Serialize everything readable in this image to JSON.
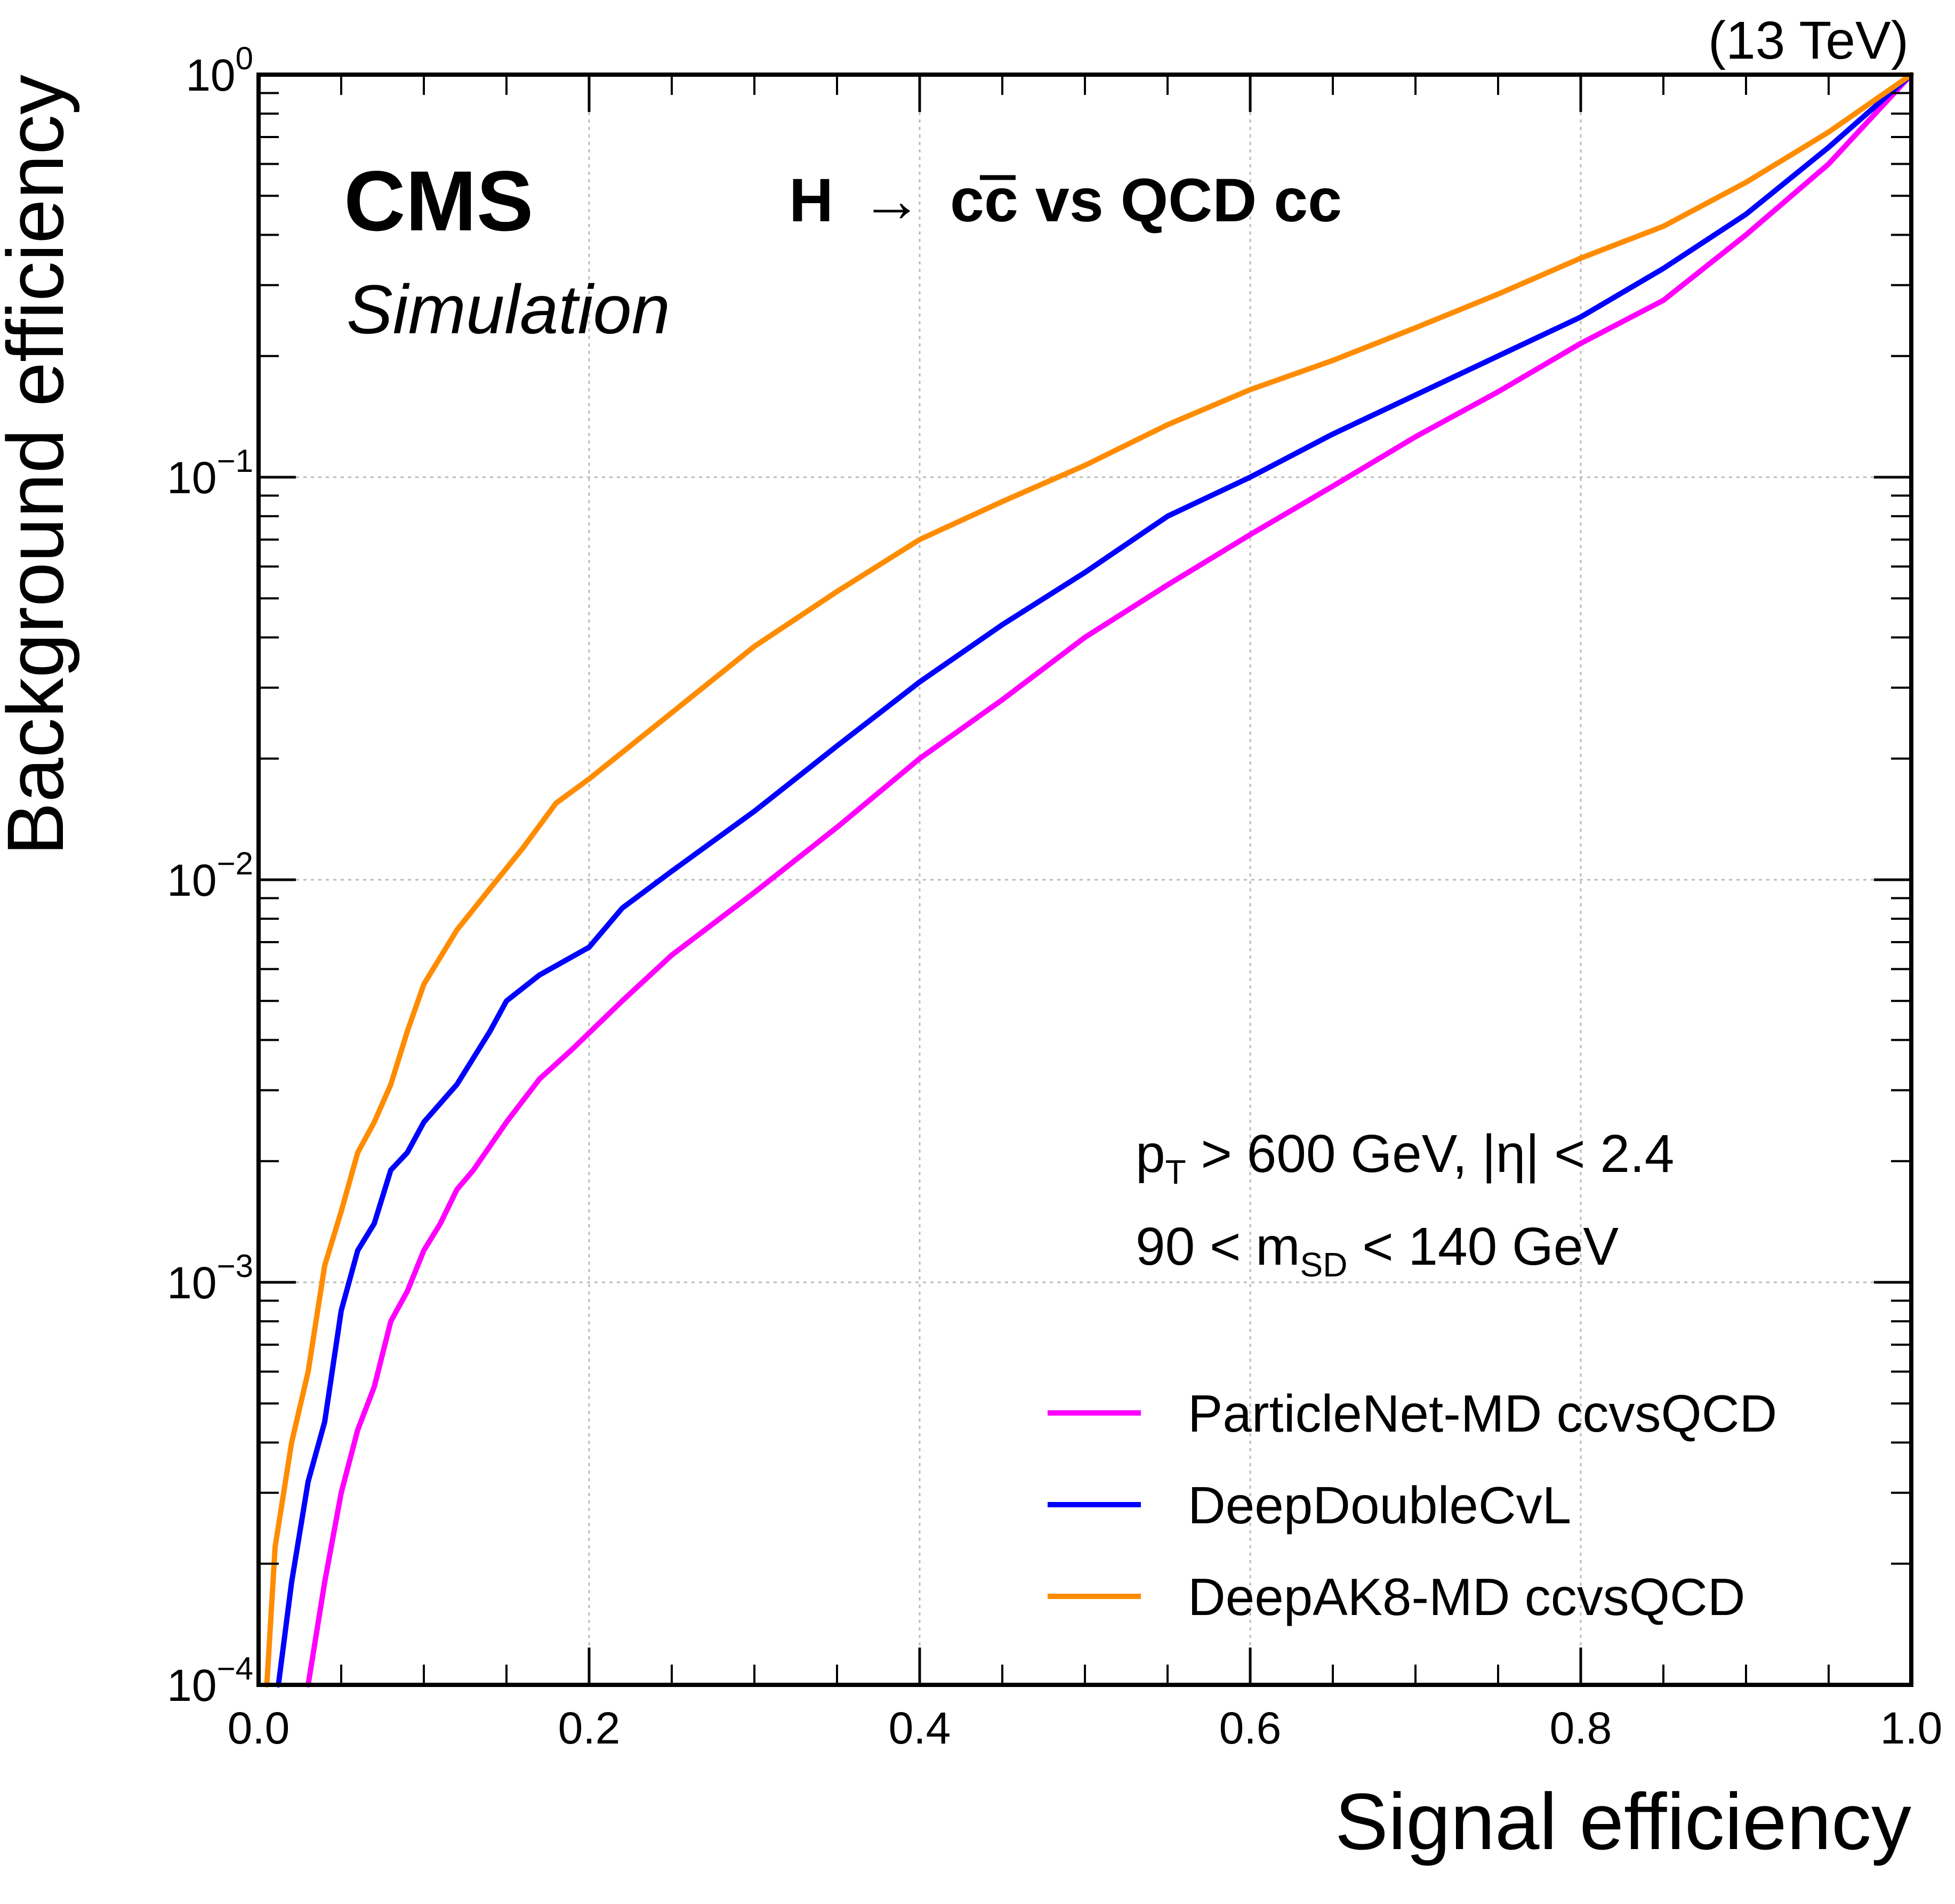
{
  "header": {
    "energy_label": "(13 TeV)",
    "experiment": "CMS",
    "subtitle": "Simulation",
    "process": {
      "H": "H",
      "arrow": "→",
      "c1": "c",
      "c2": "c",
      "rest": " vs QCD cc"
    }
  },
  "cuts": {
    "line1": {
      "p": "p",
      "p_sub": "T",
      "rest": " > 600 GeV,   |η| < 2.4"
    },
    "line2": {
      "pre": "90 < m",
      "sub": "SD",
      "post": " < 140 GeV"
    }
  },
  "chart_data": {
    "type": "line",
    "xlabel": "Signal efficiency",
    "ylabel": "Background efficiency",
    "xlim": [
      0.0,
      1.0
    ],
    "ylim": [
      0.0001,
      1.0
    ],
    "yscale": "log",
    "grid": true,
    "legend_position": "bottom-right",
    "x_ticks": [
      "0.0",
      "0.2",
      "0.4",
      "0.6",
      "0.8",
      "1.0"
    ],
    "y_ticks": [
      {
        "base": "10",
        "exp": "−4",
        "value": 0.0001
      },
      {
        "base": "10",
        "exp": "−3",
        "value": 0.001
      },
      {
        "base": "10",
        "exp": "−2",
        "value": 0.01
      },
      {
        "base": "10",
        "exp": "−1",
        "value": 0.1
      },
      {
        "base": "10",
        "exp": "0",
        "value": 1.0
      }
    ],
    "series": [
      {
        "name": "ParticleNet-MD ccvsQCD",
        "color": "#ff00ff",
        "points": [
          [
            0.03,
            0.0001
          ],
          [
            0.04,
            0.00018
          ],
          [
            0.05,
            0.0003
          ],
          [
            0.06,
            0.00043
          ],
          [
            0.07,
            0.00055
          ],
          [
            0.08,
            0.0008
          ],
          [
            0.09,
            0.00095
          ],
          [
            0.1,
            0.0012
          ],
          [
            0.11,
            0.0014
          ],
          [
            0.12,
            0.0017
          ],
          [
            0.13,
            0.0019
          ],
          [
            0.15,
            0.0025
          ],
          [
            0.17,
            0.0032
          ],
          [
            0.19,
            0.0038
          ],
          [
            0.22,
            0.005
          ],
          [
            0.25,
            0.0065
          ],
          [
            0.3,
            0.0093
          ],
          [
            0.35,
            0.0135
          ],
          [
            0.4,
            0.02
          ],
          [
            0.45,
            0.028
          ],
          [
            0.5,
            0.04
          ],
          [
            0.55,
            0.054
          ],
          [
            0.6,
            0.072
          ],
          [
            0.65,
            0.095
          ],
          [
            0.7,
            0.126
          ],
          [
            0.75,
            0.163
          ],
          [
            0.8,
            0.215
          ],
          [
            0.85,
            0.275
          ],
          [
            0.9,
            0.4
          ],
          [
            0.95,
            0.6
          ],
          [
            1.0,
            1.0
          ]
        ]
      },
      {
        "name": "DeepDoubleCvL",
        "color": "#0000ff",
        "points": [
          [
            0.012,
            0.0001
          ],
          [
            0.02,
            0.00018
          ],
          [
            0.03,
            0.00032
          ],
          [
            0.04,
            0.00045
          ],
          [
            0.05,
            0.00085
          ],
          [
            0.06,
            0.0012
          ],
          [
            0.07,
            0.0014
          ],
          [
            0.08,
            0.0019
          ],
          [
            0.09,
            0.0021
          ],
          [
            0.1,
            0.0025
          ],
          [
            0.12,
            0.0031
          ],
          [
            0.14,
            0.0042
          ],
          [
            0.15,
            0.005
          ],
          [
            0.17,
            0.0058
          ],
          [
            0.2,
            0.0068
          ],
          [
            0.22,
            0.0085
          ],
          [
            0.25,
            0.0105
          ],
          [
            0.3,
            0.0148
          ],
          [
            0.35,
            0.0215
          ],
          [
            0.4,
            0.031
          ],
          [
            0.45,
            0.043
          ],
          [
            0.5,
            0.058
          ],
          [
            0.55,
            0.08
          ],
          [
            0.6,
            0.1
          ],
          [
            0.65,
            0.128
          ],
          [
            0.7,
            0.16
          ],
          [
            0.75,
            0.2
          ],
          [
            0.8,
            0.25
          ],
          [
            0.85,
            0.33
          ],
          [
            0.9,
            0.45
          ],
          [
            0.95,
            0.66
          ],
          [
            1.0,
            1.0
          ]
        ]
      },
      {
        "name": "DeepAK8-MD ccvsQCD",
        "color": "#ff8c00",
        "points": [
          [
            0.005,
            0.0001
          ],
          [
            0.01,
            0.00022
          ],
          [
            0.02,
            0.0004
          ],
          [
            0.03,
            0.0006
          ],
          [
            0.04,
            0.0011
          ],
          [
            0.05,
            0.0015
          ],
          [
            0.06,
            0.0021
          ],
          [
            0.07,
            0.0025
          ],
          [
            0.08,
            0.0031
          ],
          [
            0.09,
            0.0042
          ],
          [
            0.1,
            0.0055
          ],
          [
            0.12,
            0.0075
          ],
          [
            0.14,
            0.0095
          ],
          [
            0.16,
            0.012
          ],
          [
            0.18,
            0.0155
          ],
          [
            0.2,
            0.0178
          ],
          [
            0.25,
            0.026
          ],
          [
            0.3,
            0.038
          ],
          [
            0.35,
            0.052
          ],
          [
            0.4,
            0.07
          ],
          [
            0.45,
            0.087
          ],
          [
            0.5,
            0.107
          ],
          [
            0.55,
            0.135
          ],
          [
            0.6,
            0.165
          ],
          [
            0.65,
            0.195
          ],
          [
            0.7,
            0.235
          ],
          [
            0.75,
            0.285
          ],
          [
            0.8,
            0.35
          ],
          [
            0.85,
            0.42
          ],
          [
            0.9,
            0.54
          ],
          [
            0.95,
            0.72
          ],
          [
            1.0,
            1.0
          ]
        ]
      }
    ]
  }
}
